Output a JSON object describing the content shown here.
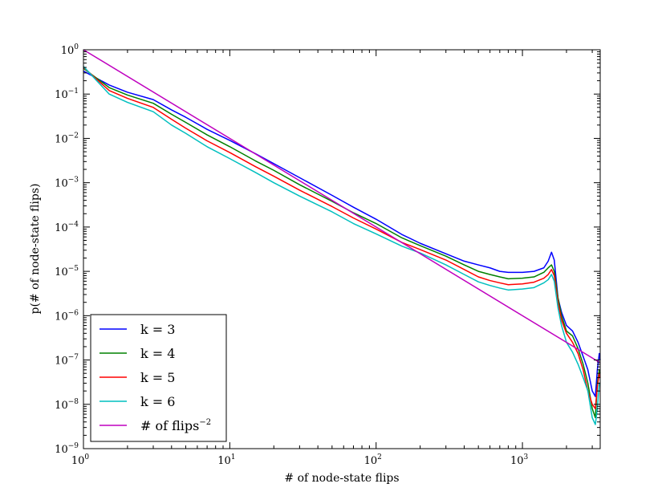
{
  "chart_data": {
    "type": "line",
    "xlabel": "# of node-state flips",
    "ylabel": "p(# of node-state flips)",
    "xscale": "log",
    "yscale": "log",
    "xlim": [
      1,
      3400
    ],
    "ylim": [
      1e-09,
      1
    ],
    "x_ticks": [
      {
        "base": "10",
        "exp": "0",
        "value": 1
      },
      {
        "base": "10",
        "exp": "1",
        "value": 10
      },
      {
        "base": "10",
        "exp": "2",
        "value": 100
      },
      {
        "base": "10",
        "exp": "3",
        "value": 1000
      }
    ],
    "y_ticks": [
      {
        "base": "10",
        "exp": "0",
        "value": 1
      },
      {
        "base": "10",
        "exp": "−1",
        "value": 0.1
      },
      {
        "base": "10",
        "exp": "−2",
        "value": 0.01
      },
      {
        "base": "10",
        "exp": "−3",
        "value": 0.001
      },
      {
        "base": "10",
        "exp": "−4",
        "value": 0.0001
      },
      {
        "base": "10",
        "exp": "−5",
        "value": 1e-05
      },
      {
        "base": "10",
        "exp": "−6",
        "value": 1e-06
      },
      {
        "base": "10",
        "exp": "−7",
        "value": 1e-07
      },
      {
        "base": "10",
        "exp": "−8",
        "value": 1e-08
      },
      {
        "base": "10",
        "exp": "−9",
        "value": 1e-09
      }
    ],
    "legend_position": "bottom-left",
    "grid": false,
    "series": [
      {
        "name": "k = 3",
        "color": "#0000ff",
        "points": [
          [
            1,
            0.33
          ],
          [
            1.5,
            0.16
          ],
          [
            2,
            0.11
          ],
          [
            3,
            0.075
          ],
          [
            4,
            0.044
          ],
          [
            5,
            0.03
          ],
          [
            7,
            0.016
          ],
          [
            10,
            0.009
          ],
          [
            15,
            0.0045
          ],
          [
            20,
            0.0027
          ],
          [
            30,
            0.0013
          ],
          [
            50,
            0.00052
          ],
          [
            70,
            0.00028
          ],
          [
            100,
            0.00015
          ],
          [
            150,
            6.8e-05
          ],
          [
            200,
            4.3e-05
          ],
          [
            300,
            2.5e-05
          ],
          [
            400,
            1.7e-05
          ],
          [
            500,
            1.4e-05
          ],
          [
            600,
            1.2e-05
          ],
          [
            700,
            1e-05
          ],
          [
            800,
            9.5e-06
          ],
          [
            1000,
            9.5e-06
          ],
          [
            1200,
            1e-05
          ],
          [
            1400,
            1.2e-05
          ],
          [
            1500,
            1.7e-05
          ],
          [
            1580,
            2.7e-05
          ],
          [
            1650,
            1.8e-05
          ],
          [
            1750,
            2.5e-06
          ],
          [
            1850,
            1.2e-06
          ],
          [
            2000,
            6e-07
          ],
          [
            2200,
            4.5e-07
          ],
          [
            2400,
            2.5e-07
          ],
          [
            2600,
            1.2e-07
          ],
          [
            2800,
            6e-08
          ],
          [
            3000,
            2e-08
          ],
          [
            3150,
            1.5e-08
          ],
          [
            3250,
            6e-08
          ],
          [
            3350,
            1.4e-07
          ],
          [
            3400,
            1e-07
          ]
        ]
      },
      {
        "name": "k = 4",
        "color": "#008000",
        "points": [
          [
            1,
            0.38
          ],
          [
            1.5,
            0.14
          ],
          [
            2,
            0.095
          ],
          [
            3,
            0.062
          ],
          [
            4,
            0.035
          ],
          [
            5,
            0.023
          ],
          [
            7,
            0.012
          ],
          [
            10,
            0.0065
          ],
          [
            15,
            0.0031
          ],
          [
            20,
            0.0019
          ],
          [
            30,
            0.0009
          ],
          [
            50,
            0.00038
          ],
          [
            70,
            0.00021
          ],
          [
            100,
            0.00012
          ],
          [
            150,
            5.7e-05
          ],
          [
            200,
            3.8e-05
          ],
          [
            300,
            2.2e-05
          ],
          [
            400,
            1.4e-05
          ],
          [
            500,
            1e-05
          ],
          [
            600,
            8.5e-06
          ],
          [
            700,
            7.5e-06
          ],
          [
            800,
            6.8e-06
          ],
          [
            1000,
            7e-06
          ],
          [
            1200,
            7.5e-06
          ],
          [
            1400,
            9.5e-06
          ],
          [
            1500,
            1.2e-05
          ],
          [
            1580,
            1.4e-05
          ],
          [
            1650,
            1e-05
          ],
          [
            1750,
            2.5e-06
          ],
          [
            1850,
            1e-06
          ],
          [
            2000,
            4.5e-07
          ],
          [
            2200,
            3.5e-07
          ],
          [
            2400,
            1.8e-07
          ],
          [
            2600,
            8e-08
          ],
          [
            2800,
            3e-08
          ],
          [
            3000,
            8e-09
          ],
          [
            3150,
            5e-09
          ],
          [
            3250,
            3e-08
          ],
          [
            3350,
            6e-08
          ],
          [
            3400,
            5e-08
          ]
        ]
      },
      {
        "name": "k = 5",
        "color": "#ff0000",
        "points": [
          [
            1,
            0.4
          ],
          [
            1.5,
            0.12
          ],
          [
            2,
            0.08
          ],
          [
            3,
            0.05
          ],
          [
            4,
            0.027
          ],
          [
            5,
            0.017
          ],
          [
            7,
            0.0088
          ],
          [
            10,
            0.0048
          ],
          [
            15,
            0.0023
          ],
          [
            20,
            0.0014
          ],
          [
            30,
            0.00068
          ],
          [
            50,
            0.00029
          ],
          [
            70,
            0.00016
          ],
          [
            100,
            9e-05
          ],
          [
            150,
            4.5e-05
          ],
          [
            200,
            3.1e-05
          ],
          [
            300,
            1.8e-05
          ],
          [
            400,
            1.1e-05
          ],
          [
            500,
            7.5e-06
          ],
          [
            600,
            6.2e-06
          ],
          [
            700,
            5.5e-06
          ],
          [
            800,
            5e-06
          ],
          [
            1000,
            5.2e-06
          ],
          [
            1200,
            5.7e-06
          ],
          [
            1400,
            7e-06
          ],
          [
            1500,
            8.5e-06
          ],
          [
            1580,
            1.1e-05
          ],
          [
            1650,
            8e-06
          ],
          [
            1750,
            2e-06
          ],
          [
            1850,
            8e-07
          ],
          [
            2000,
            4e-07
          ],
          [
            2200,
            2.5e-07
          ],
          [
            2400,
            1.4e-07
          ],
          [
            2600,
            6e-08
          ],
          [
            2800,
            2e-08
          ],
          [
            3000,
            1e-08
          ],
          [
            3150,
            8e-09
          ],
          [
            3250,
            2.5e-08
          ],
          [
            3350,
            5e-08
          ],
          [
            3400,
            4e-08
          ]
        ]
      },
      {
        "name": "k = 6",
        "color": "#00bfbf",
        "points": [
          [
            1,
            0.42
          ],
          [
            1.5,
            0.1
          ],
          [
            2,
            0.065
          ],
          [
            3,
            0.04
          ],
          [
            4,
            0.02
          ],
          [
            5,
            0.013
          ],
          [
            7,
            0.0065
          ],
          [
            10,
            0.0035
          ],
          [
            15,
            0.0017
          ],
          [
            20,
            0.001
          ],
          [
            30,
            0.0005
          ],
          [
            50,
            0.00022
          ],
          [
            70,
            0.00012
          ],
          [
            100,
            7e-05
          ],
          [
            150,
            3.7e-05
          ],
          [
            200,
            2.6e-05
          ],
          [
            300,
            1.4e-05
          ],
          [
            400,
            8.5e-06
          ],
          [
            500,
            5.8e-06
          ],
          [
            600,
            4.8e-06
          ],
          [
            700,
            4.2e-06
          ],
          [
            800,
            3.8e-06
          ],
          [
            1000,
            4e-06
          ],
          [
            1200,
            4.3e-06
          ],
          [
            1400,
            5.5e-06
          ],
          [
            1500,
            6.5e-06
          ],
          [
            1580,
            8.5e-06
          ],
          [
            1650,
            6e-06
          ],
          [
            1750,
            1.5e-06
          ],
          [
            1850,
            6e-07
          ],
          [
            2000,
            2.5e-07
          ],
          [
            2200,
            1.5e-07
          ],
          [
            2400,
            8e-08
          ],
          [
            2600,
            4e-08
          ],
          [
            2800,
            2e-08
          ],
          [
            3000,
            5e-09
          ],
          [
            3150,
            3.5e-09
          ],
          [
            3250,
            8e-09
          ],
          [
            3350,
            3e-08
          ],
          [
            3400,
            3e-08
          ]
        ]
      },
      {
        "name": "# of flips",
        "name_exp": "−2",
        "color": "#bf00bf",
        "function": "x^-2",
        "points": [
          [
            1,
            1
          ],
          [
            3400,
            8.65e-08
          ]
        ]
      }
    ]
  }
}
